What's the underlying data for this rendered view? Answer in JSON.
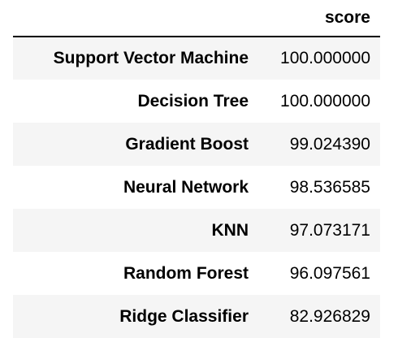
{
  "table": {
    "header": {
      "index_label": "",
      "column": "score"
    },
    "rows": [
      {
        "label": "Support Vector Machine",
        "score": "100.000000"
      },
      {
        "label": "Decision Tree",
        "score": "100.000000"
      },
      {
        "label": "Gradient Boost",
        "score": "99.024390"
      },
      {
        "label": "Neural Network",
        "score": "98.536585"
      },
      {
        "label": "KNN",
        "score": "97.073171"
      },
      {
        "label": "Random Forest",
        "score": "96.097561"
      },
      {
        "label": "Ridge Classifier",
        "score": "82.926829"
      }
    ]
  },
  "colors": {
    "row_stripe": "#f5f5f5",
    "header_rule": "#000000",
    "text": "#000000"
  }
}
